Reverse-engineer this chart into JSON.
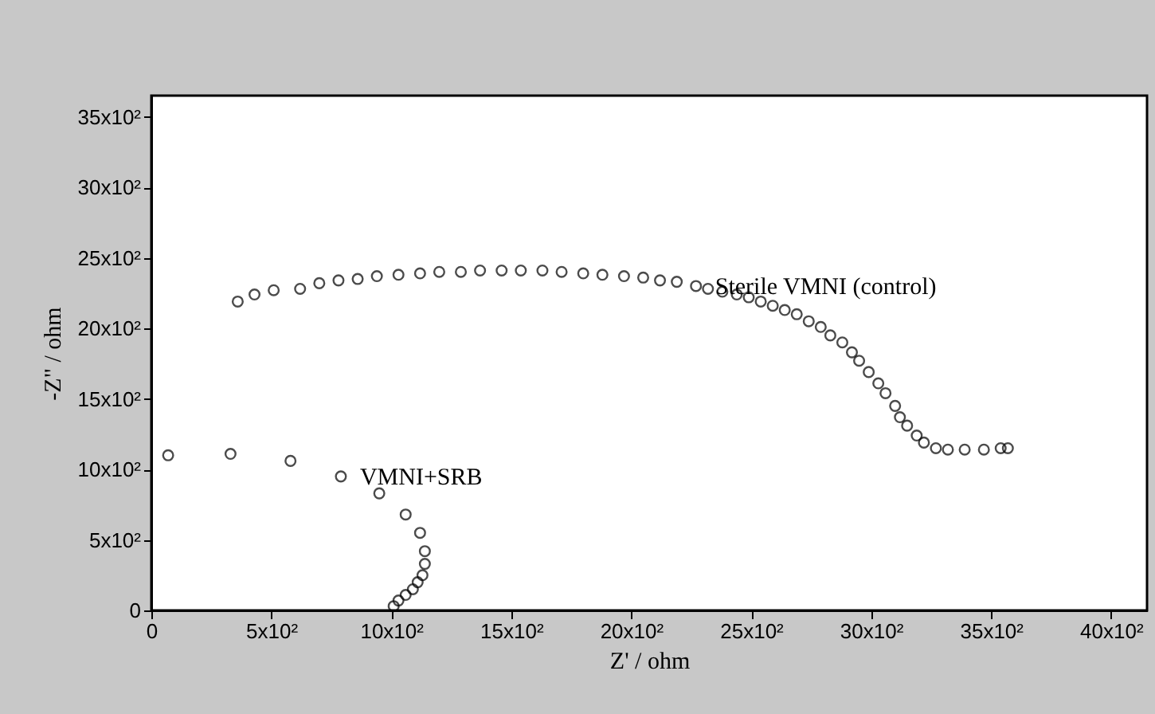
{
  "chart_data": {
    "type": "scatter",
    "xlabel": "Z' / ohm",
    "ylabel": "-Z\" / ohm",
    "xlim": [
      0,
      4150
    ],
    "ylim": [
      0,
      3650
    ],
    "xticks": [
      0,
      {
        "value": 500,
        "label": "5x10²"
      },
      {
        "value": 1000,
        "label": "10x10²"
      },
      {
        "value": 1500,
        "label": "15x10²"
      },
      {
        "value": 2000,
        "label": "20x10²"
      },
      {
        "value": 2500,
        "label": "25x10²"
      },
      {
        "value": 3000,
        "label": "30x10²"
      },
      {
        "value": 3500,
        "label": "35x10²"
      },
      {
        "value": 4000,
        "label": "40x10²"
      }
    ],
    "yticks": [
      0,
      {
        "value": 500,
        "label": "5x10²"
      },
      {
        "value": 1000,
        "label": "10x10²"
      },
      {
        "value": 1500,
        "label": "15x10²"
      },
      {
        "value": 2000,
        "label": "20x10²"
      },
      {
        "value": 2500,
        "label": "25x10²"
      },
      {
        "value": 3000,
        "label": "30x10²"
      },
      {
        "value": 3500,
        "label": "35x10²"
      }
    ],
    "grid": false,
    "marker": "circle",
    "series": [
      {
        "color": "#000000",
        "x": [
          360,
          430,
          510,
          620,
          700,
          780,
          860,
          940,
          1030,
          1120,
          1200,
          1290,
          1370,
          1460,
          1540,
          1630,
          1710,
          1800,
          1880,
          1970,
          2050,
          2120,
          2190,
          2270,
          2320,
          2380,
          2440,
          2490,
          2540,
          2590,
          2640,
          2690,
          2740,
          2790,
          2830,
          2880,
          2920,
          2950,
          2990,
          3030,
          3060,
          3100,
          3120,
          3150,
          3190,
          3220,
          3270,
          3320,
          3390,
          3470,
          3540,
          3570
        ],
        "values": [
          2190,
          2240,
          2270,
          2280,
          2320,
          2340,
          2350,
          2370,
          2380,
          2390,
          2400,
          2400,
          2410,
          2410,
          2410,
          2410,
          2400,
          2390,
          2380,
          2370,
          2360,
          2340,
          2330,
          2300,
          2280,
          2260,
          2240,
          2220,
          2190,
          2160,
          2130,
          2100,
          2050,
          2010,
          1950,
          1900,
          1830,
          1770,
          1690,
          1610,
          1540,
          1450,
          1370,
          1310,
          1240,
          1190,
          1150,
          1140,
          1140,
          1140,
          1150,
          1150
        ]
      },
      {
        "color": "#000000",
        "x": [
          70,
          330,
          580,
          790,
          950,
          1060,
          1120,
          1140,
          1140,
          1130,
          1110,
          1090,
          1060,
          1030,
          1010
        ],
        "values": [
          1100,
          1110,
          1060,
          950,
          830,
          680,
          550,
          420,
          330,
          250,
          200,
          150,
          110,
          70,
          30
        ]
      }
    ],
    "annotations": [
      {
        "text": "Sterile VMNI (control)",
        "x": 2270,
        "y": 2300
      },
      {
        "text": "VMNI+SRB",
        "x": 790,
        "y": 950
      }
    ]
  }
}
